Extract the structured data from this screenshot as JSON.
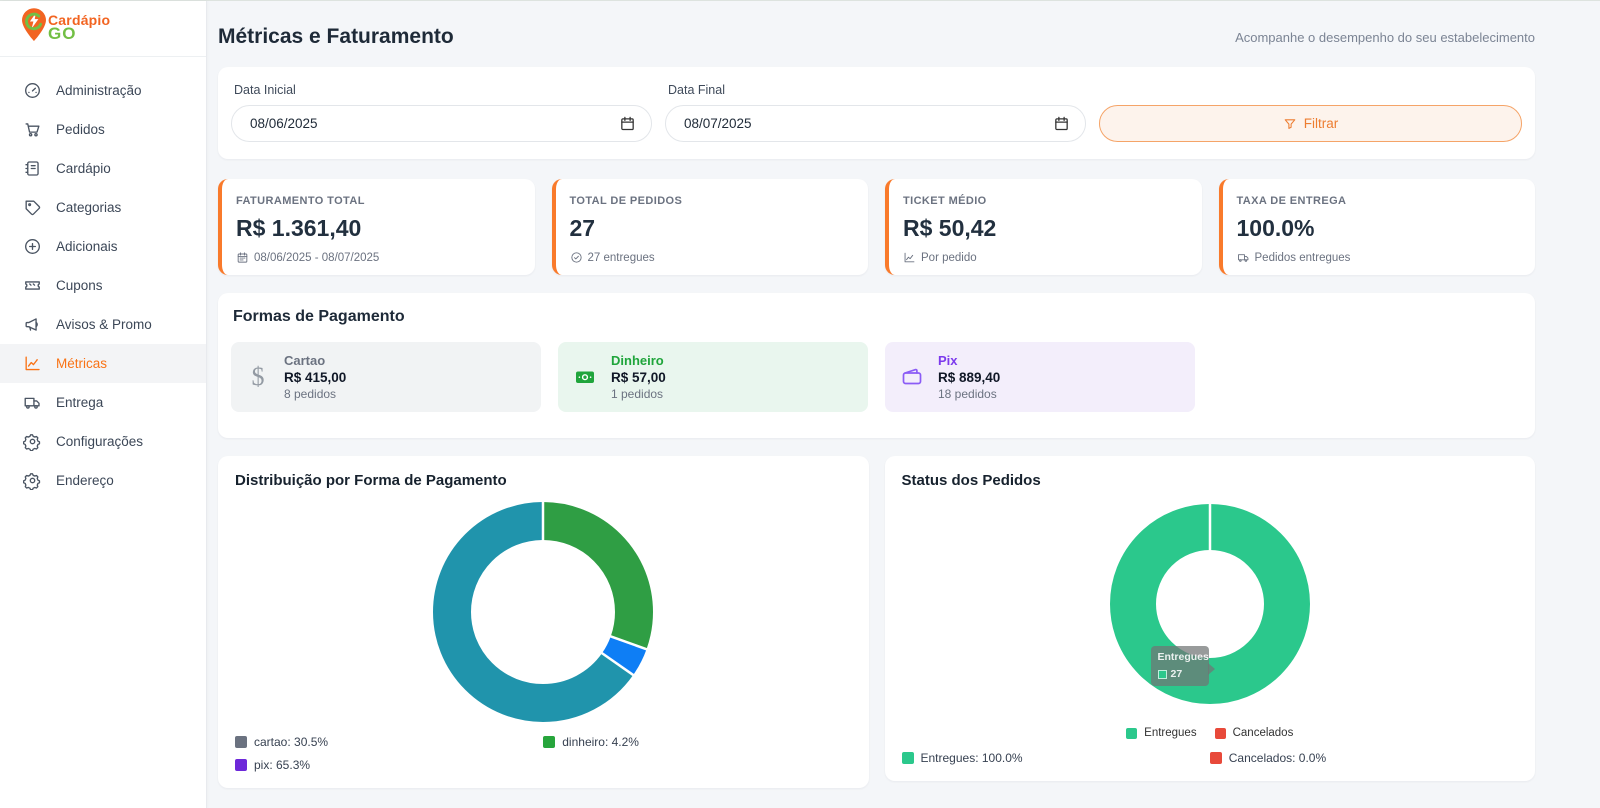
{
  "brand": {
    "line1": "Cardápio",
    "line2": "GO"
  },
  "header": {
    "title": "Métricas e Faturamento",
    "subtitle": "Acompanhe o desempenho do seu estabelecimento"
  },
  "sidebar": {
    "items": [
      {
        "label": "Administração",
        "icon": "gauge-icon",
        "active": false
      },
      {
        "label": "Pedidos",
        "icon": "cart-icon",
        "active": false
      },
      {
        "label": "Cardápio",
        "icon": "menu-book-icon",
        "active": false
      },
      {
        "label": "Categorias",
        "icon": "tag-icon",
        "active": false
      },
      {
        "label": "Adicionais",
        "icon": "plus-circle-icon",
        "active": false
      },
      {
        "label": "Cupons",
        "icon": "ticket-icon",
        "active": false
      },
      {
        "label": "Avisos & Promo",
        "icon": "megaphone-icon",
        "active": false
      },
      {
        "label": "Métricas",
        "icon": "chart-line-icon",
        "active": true
      },
      {
        "label": "Entrega",
        "icon": "truck-icon",
        "active": false
      },
      {
        "label": "Configurações",
        "icon": "gear-icon",
        "active": false
      },
      {
        "label": "Endereço",
        "icon": "gear-icon",
        "active": false
      }
    ]
  },
  "filter": {
    "start_label": "Data Inicial",
    "start_value": "08/06/2025",
    "end_label": "Data Final",
    "end_value": "08/07/2025",
    "button_label": "Filtrar"
  },
  "metrics": [
    {
      "label": "FATURAMENTO TOTAL",
      "value": "R$ 1.361,40",
      "note": "08/06/2025 - 08/07/2025",
      "icon": "calendar-icon"
    },
    {
      "label": "TOTAL DE PEDIDOS",
      "value": "27",
      "note": "27 entregues",
      "icon": "check-circle-icon"
    },
    {
      "label": "TICKET MÉDIO",
      "value": "R$ 50,42",
      "note": "Por pedido",
      "icon": "trend-icon"
    },
    {
      "label": "TAXA DE ENTREGA",
      "value": "100.0%",
      "note": "Pedidos entregues",
      "icon": "truck-icon"
    }
  ],
  "payments": {
    "title": "Formas de Pagamento",
    "methods": [
      {
        "name": "Cartao",
        "amount": "R$ 415,00",
        "orders": "8 pedidos",
        "theme": "gray",
        "icon": "dollar-icon"
      },
      {
        "name": "Dinheiro",
        "amount": "R$ 57,00",
        "orders": "1 pedidos",
        "theme": "green",
        "icon": "banknote-icon"
      },
      {
        "name": "Pix",
        "amount": "R$ 889,40",
        "orders": "18 pedidos",
        "theme": "purple",
        "icon": "wallet-icon"
      }
    ]
  },
  "chart_data": [
    {
      "type": "pie",
      "title": "Distribuição por Forma de Pagamento",
      "donut": {
        "outer_radius": 110,
        "inner_radius": 72
      },
      "slices": [
        {
          "label": "cartao",
          "value": 30.5,
          "color": "#2f9e44"
        },
        {
          "label": "dinheiro",
          "value": 4.2,
          "color": "#0e7ef5"
        },
        {
          "label": "pix",
          "value": 65.3,
          "color": "#2094ac"
        }
      ],
      "legend": [
        {
          "label": "cartao: 30.5%",
          "color": "#6b7280"
        },
        {
          "label": "dinheiro: 4.2%",
          "color": "#27a53c"
        },
        {
          "label": "pix: 65.3%",
          "color": "#6d28d9"
        }
      ]
    },
    {
      "type": "pie",
      "title": "Status dos Pedidos",
      "donut": {
        "outer_radius": 100,
        "inner_radius": 54
      },
      "slices": [
        {
          "label": "Entregues",
          "value": 100.0,
          "color": "#2bc88c"
        },
        {
          "label": "Cancelados",
          "value": 0.0,
          "color": "#e8493a"
        }
      ],
      "inline_legend": [
        {
          "label": "Entregues",
          "color": "#2bc88c"
        },
        {
          "label": "Cancelados",
          "color": "#e8493a"
        }
      ],
      "legend": [
        {
          "label": "Entregues: 100.0%",
          "color": "#2bc88c"
        },
        {
          "label": "Cancelados: 0.0%",
          "color": "#e8493a"
        }
      ],
      "tooltip": {
        "title": "Entregues",
        "value": "27"
      }
    }
  ],
  "colors": {
    "accent_orange": "#f97316",
    "brand_orange": "#f26421",
    "brand_green": "#72bf44",
    "card_border_orange": "#f97a2b"
  }
}
